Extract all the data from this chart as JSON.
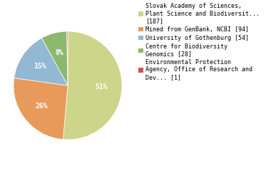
{
  "labels": [
    "Slovak Academy of Sciences,\nPlant Science and Biodiversit...\n[187]",
    "Mined from GenBank, NCBI [94]",
    "University of Gothenburg [54]",
    "Centre for Biodiversity\nGenomics [28]",
    "Environmental Protection\nAgency, Office of Research and\nDev... [1]"
  ],
  "values": [
    187,
    94,
    54,
    28,
    1
  ],
  "colors": [
    "#cdd58a",
    "#e89a5a",
    "#93b8d4",
    "#8db870",
    "#cc5555"
  ],
  "startangle": 90,
  "background_color": "#ffffff",
  "legend_fontsize": 6.0,
  "pct_fontsize": 7.0
}
